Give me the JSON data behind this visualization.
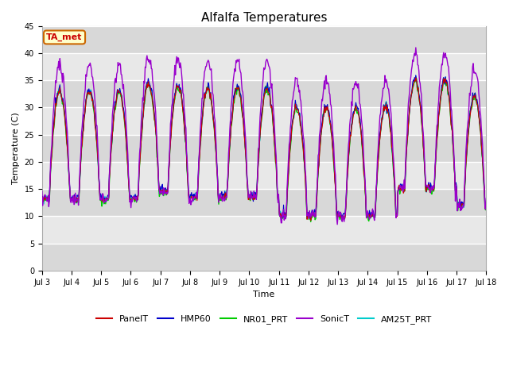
{
  "title": "Alfalfa Temperatures",
  "xlabel": "Time",
  "ylabel": "Temperature (C)",
  "ylim": [
    0,
    45
  ],
  "yticks": [
    0,
    5,
    10,
    15,
    20,
    25,
    30,
    35,
    40,
    45
  ],
  "annotation_text": "TA_met",
  "annotation_color": "#cc0000",
  "annotation_bg": "#ffffcc",
  "annotation_border": "#cc6600",
  "fig_bg": "#ffffff",
  "plot_bg": "#e0e0e0",
  "series": {
    "PanelT": {
      "color": "#cc0000",
      "lw": 0.8,
      "zorder": 5
    },
    "HMP60": {
      "color": "#0000cc",
      "lw": 0.8,
      "zorder": 4
    },
    "NR01_PRT": {
      "color": "#00cc00",
      "lw": 1.0,
      "zorder": 3
    },
    "SonicT": {
      "color": "#9900cc",
      "lw": 1.0,
      "zorder": 6
    },
    "AM25T_PRT": {
      "color": "#00cccc",
      "lw": 0.8,
      "zorder": 2
    }
  },
  "x_tick_labels": [
    "Jul 3",
    "Jul 4",
    "Jul 5",
    "Jul 6",
    "Jul 7",
    "Jul 8",
    "Jul 9",
    "Jul 10",
    "Jul 11",
    "Jul 12",
    "Jul 13",
    "Jul 14",
    "Jul 15",
    "Jul 16",
    "Jul 17",
    "Jul 18"
  ],
  "title_fontsize": 11,
  "label_fontsize": 8,
  "tick_fontsize": 7,
  "legend_fontsize": 8,
  "grid_color": "#ffffff",
  "grid_lw": 1.0,
  "band_colors": [
    "#d8d8d8",
    "#e8e8e8"
  ]
}
